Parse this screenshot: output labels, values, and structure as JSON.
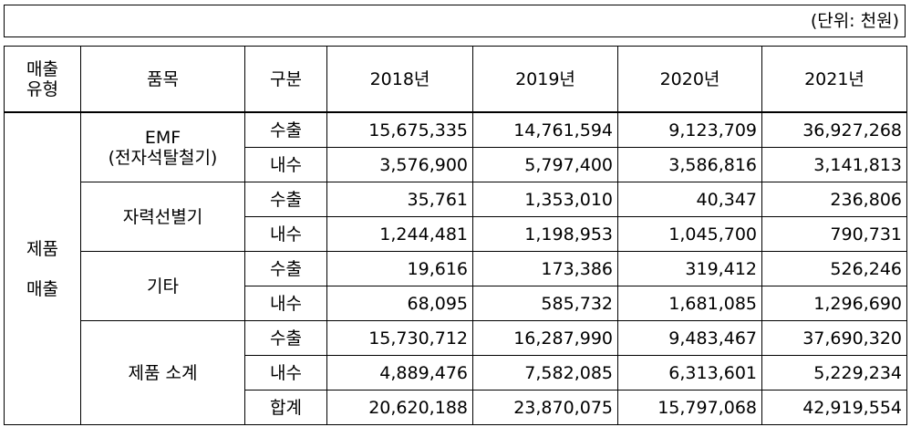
{
  "unit_note": "(단위: 천원)",
  "headers": {
    "type_line1": "매출",
    "type_line2": "유형",
    "item": "품목",
    "division": "구분",
    "years": [
      "2018년",
      "2019년",
      "2020년",
      "2021년"
    ]
  },
  "sales_type": {
    "line1": "제품",
    "line2": "매출"
  },
  "groups": [
    {
      "item_line1": "EMF",
      "item_line2": "(전자석탈철기)",
      "rows": [
        {
          "division": "수출",
          "values": [
            "15,675,335",
            "14,761,594",
            "9,123,709",
            "36,927,268"
          ]
        },
        {
          "division": "내수",
          "values": [
            "3,576,900",
            "5,797,400",
            "3,586,816",
            "3,141,813"
          ]
        }
      ]
    },
    {
      "item_line1": "자력선별기",
      "item_line2": "",
      "rows": [
        {
          "division": "수출",
          "values": [
            "35,761",
            "1,353,010",
            "40,347",
            "236,806"
          ]
        },
        {
          "division": "내수",
          "values": [
            "1,244,481",
            "1,198,953",
            "1,045,700",
            "790,731"
          ]
        }
      ]
    },
    {
      "item_line1": "기타",
      "item_line2": "",
      "rows": [
        {
          "division": "수출",
          "values": [
            "19,616",
            "173,386",
            "319,412",
            "526,246"
          ]
        },
        {
          "division": "내수",
          "values": [
            "68,095",
            "585,732",
            "1,681,085",
            "1,296,690"
          ]
        }
      ]
    },
    {
      "item_line1": "제품 소계",
      "item_line2": "",
      "rows": [
        {
          "division": "수출",
          "values": [
            "15,730,712",
            "16,287,990",
            "9,483,467",
            "37,690,320"
          ]
        },
        {
          "division": "내수",
          "values": [
            "4,889,476",
            "7,582,085",
            "6,313,601",
            "5,229,234"
          ]
        },
        {
          "division": "합계",
          "values": [
            "20,620,188",
            "23,870,075",
            "15,797,068",
            "42,919,554"
          ]
        }
      ]
    }
  ]
}
